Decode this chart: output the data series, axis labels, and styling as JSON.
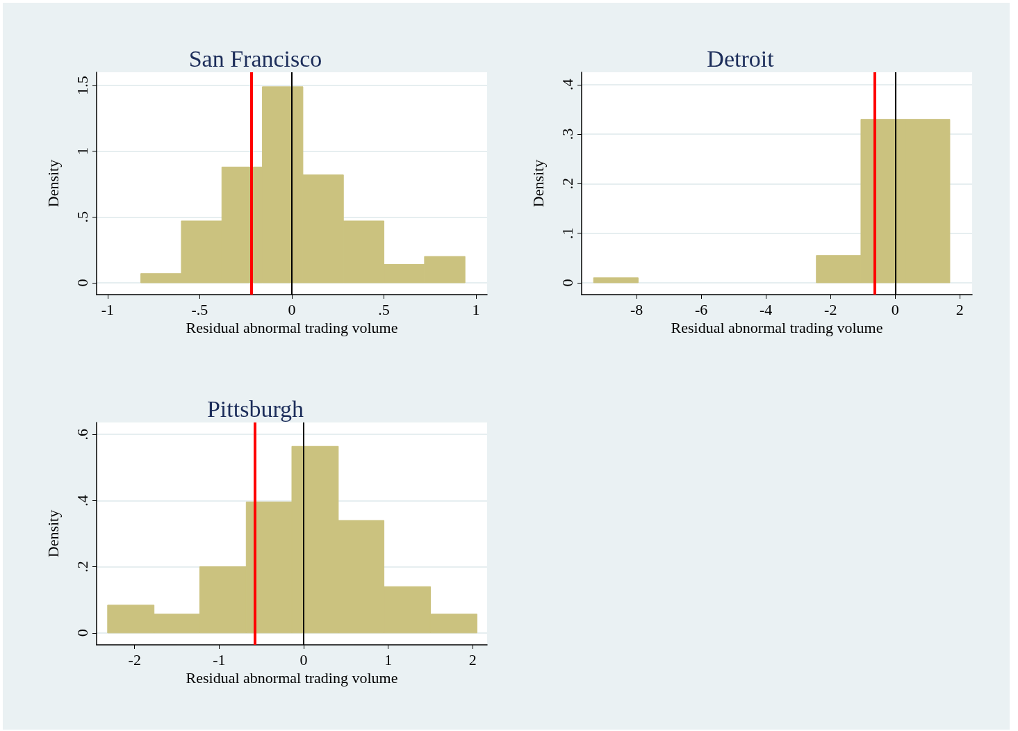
{
  "chart_data": [
    {
      "type": "histogram",
      "title": "San Francisco",
      "xlabel": "Residual abnormal trading volume",
      "ylabel": "Density",
      "color": "#cbc27f",
      "bins": [
        -0.82,
        -0.6,
        -0.38,
        -0.16,
        0.06,
        0.28,
        0.5,
        0.72,
        0.94
      ],
      "values": [
        0.07,
        0.47,
        0.88,
        1.49,
        0.82,
        0.47,
        0.14,
        0.2
      ],
      "xlim": [
        -1.06,
        1.06
      ],
      "xticks": [
        -1,
        {
          "value": -0.5,
          "label": "-.5"
        },
        0,
        {
          "value": 0.5,
          "label": ".5"
        },
        1
      ],
      "ylim": [
        -0.09,
        1.6
      ],
      "yticks": [
        0,
        {
          "value": 0.5,
          "label": ".5"
        },
        1,
        1.5
      ],
      "grid": "y",
      "ref_lines": [
        {
          "axis": "x",
          "value": 0,
          "color": "#000000"
        },
        {
          "axis": "x",
          "value": -0.22,
          "color": "#ff0000"
        }
      ]
    },
    {
      "type": "histogram",
      "title": "Detroit",
      "xlabel": "Residual abnormal trading volume",
      "ylabel": "Density",
      "color": "#cbc27f",
      "bins": [
        -9.33,
        -7.95,
        -6.57,
        -5.2,
        -3.82,
        -2.44,
        -1.06,
        0.31,
        1.69
      ],
      "values": [
        0.01,
        0,
        0,
        0,
        0,
        0.055,
        0.33,
        0.33
      ],
      "xlim": [
        -9.7,
        2.38
      ],
      "xticks": [
        -8,
        -6,
        -4,
        -2,
        0,
        2
      ],
      "ylim": [
        -0.024,
        0.425
      ],
      "yticks": [
        0,
        {
          "value": 0.1,
          "label": ".1"
        },
        {
          "value": 0.2,
          "label": ".2"
        },
        {
          "value": 0.3,
          "label": ".3"
        },
        {
          "value": 0.4,
          "label": ".4"
        }
      ],
      "grid": "y",
      "ref_lines": [
        {
          "axis": "x",
          "value": 0,
          "color": "#000000"
        },
        {
          "axis": "x",
          "value": -0.64,
          "color": "#ff0000"
        }
      ]
    },
    {
      "type": "histogram",
      "title": "Pittsburgh",
      "xlabel": "Residual abnormal trading volume",
      "ylabel": "Density",
      "color": "#cbc27f",
      "bins": [
        -2.32,
        -1.77,
        -1.23,
        -0.68,
        -0.14,
        0.41,
        0.95,
        1.5,
        2.05
      ],
      "values": [
        0.084,
        0.057,
        0.2,
        0.396,
        0.564,
        0.34,
        0.14,
        0.057
      ],
      "xlim": [
        -2.45,
        2.17
      ],
      "xticks": [
        -2,
        -1,
        0,
        1,
        2
      ],
      "ylim": [
        -0.036,
        0.636
      ],
      "yticks": [
        0,
        {
          "value": 0.2,
          "label": ".2"
        },
        {
          "value": 0.4,
          "label": ".4"
        },
        {
          "value": 0.6,
          "label": ".6"
        }
      ],
      "grid": "y",
      "ref_lines": [
        {
          "axis": "x",
          "value": 0,
          "color": "#000000"
        },
        {
          "axis": "x",
          "value": -0.58,
          "color": "#ff0000"
        }
      ]
    }
  ]
}
